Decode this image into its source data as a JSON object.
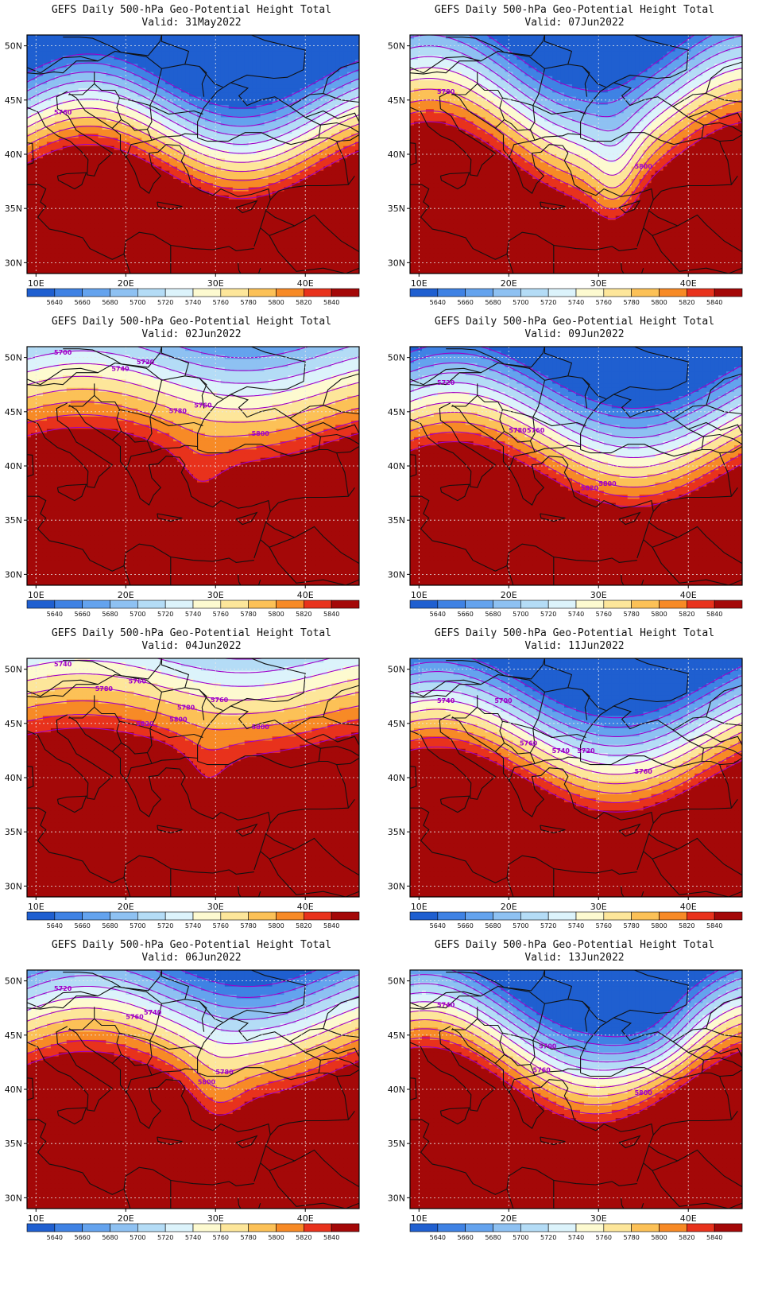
{
  "title_line": "GEFS Daily 500-hPa Geo-Potential Height Total",
  "valid_prefix": "Valid:",
  "lat_labels": [
    "50N",
    "45N",
    "40N",
    "35N",
    "30N"
  ],
  "lat_values": [
    50,
    45,
    40,
    35,
    30
  ],
  "lon_labels": [
    "10E",
    "20E",
    "30E",
    "40E"
  ],
  "lon_values": [
    10,
    20,
    30,
    40
  ],
  "extent": {
    "lon": [
      9,
      46
    ],
    "lat": [
      29,
      51
    ]
  },
  "colorbar": {
    "labels": [
      "5640",
      "5660",
      "5680",
      "5700",
      "5720",
      "5740",
      "5760",
      "5780",
      "5800",
      "5820",
      "5840"
    ],
    "colors": [
      "#1f5fd0",
      "#3f82e4",
      "#64a3ee",
      "#8ec1f2",
      "#b4dcf6",
      "#dcf3fb",
      "#fdfad0",
      "#fde69a",
      "#fcc157",
      "#f78a26",
      "#e8321c",
      "#a40808"
    ]
  },
  "contour_color": "#a000c8",
  "panels": [
    {
      "date": "31May2022",
      "col": 0,
      "row": 0,
      "lat0": 40.5,
      "amp": 2.5,
      "wl": 34,
      "ph": 0.3,
      "g": 2.4,
      "ridge": null,
      "trough": null,
      "labels": [
        "5760"
      ]
    },
    {
      "date": "07Jun2022",
      "col": 1,
      "row": 0,
      "lat0": 42,
      "amp": 3.5,
      "wl": 36,
      "ph": 1.2,
      "g": 2.0,
      "ridge": null,
      "trough": {
        "lon": 32,
        "lat": 36,
        "sl": 3,
        "sa": 7,
        "amp": 5
      },
      "labels": [
        "5780",
        "5800"
      ]
    },
    {
      "date": "02Jun2022",
      "col": 0,
      "row": 1,
      "lat0": 45,
      "amp": 1.5,
      "wl": 36,
      "ph": 0.5,
      "g": 1.7,
      "ridge": null,
      "trough": {
        "lon": 28,
        "lat": 36,
        "sl": 4,
        "sa": 5,
        "amp": 5.5
      },
      "labels": [
        "5700",
        "5720",
        "5740",
        "5760",
        "5780",
        "5800"
      ]
    },
    {
      "date": "09Jun2022",
      "col": 1,
      "row": 1,
      "lat0": 41.5,
      "amp": 3.0,
      "wl": 40,
      "ph": 0.8,
      "g": 2.2,
      "ridge": null,
      "trough": null,
      "labels": [
        "5720",
        "5760",
        "5780",
        "5800",
        "5820"
      ]
    },
    {
      "date": "04Jun2022",
      "col": 0,
      "row": 2,
      "lat0": 46.5,
      "amp": 1.2,
      "wl": 36,
      "ph": 0.5,
      "g": 1.6,
      "ridge": null,
      "trough": {
        "lon": 29,
        "lat": 37.5,
        "sl": 3.5,
        "sa": 5,
        "amp": 5
      },
      "labels": [
        "5740",
        "5760",
        "5780",
        "5800",
        "5820",
        "5760",
        "5780",
        "5800"
      ]
    },
    {
      "date": "11Jun2022",
      "col": 1,
      "row": 2,
      "lat0": 42,
      "amp": 3.0,
      "wl": 40,
      "ph": 1.1,
      "g": 2.3,
      "ridge": null,
      "trough": null,
      "labels": [
        "5740",
        "5760",
        "5700",
        "5720",
        "5740",
        "5760"
      ]
    },
    {
      "date": "06Jun2022",
      "col": 0,
      "row": 3,
      "lat0": 44,
      "amp": 2.0,
      "wl": 36,
      "ph": 0.4,
      "g": 2.0,
      "ridge": null,
      "trough": {
        "lon": 30,
        "lat": 37,
        "sl": 3.5,
        "sa": 6,
        "amp": 4.5
      },
      "labels": [
        "5720",
        "5740",
        "5760",
        "5780",
        "5800"
      ]
    },
    {
      "date": "13Jun2022",
      "col": 1,
      "row": 3,
      "lat0": 42.5,
      "amp": 3.5,
      "wl": 38,
      "ph": 1.3,
      "g": 2.4,
      "ridge": null,
      "trough": {
        "lon": 36,
        "lat": 45,
        "sl": 5,
        "sa": 4,
        "amp": 3
      },
      "labels": [
        "5740",
        "5700",
        "5760",
        "5800"
      ]
    }
  ]
}
